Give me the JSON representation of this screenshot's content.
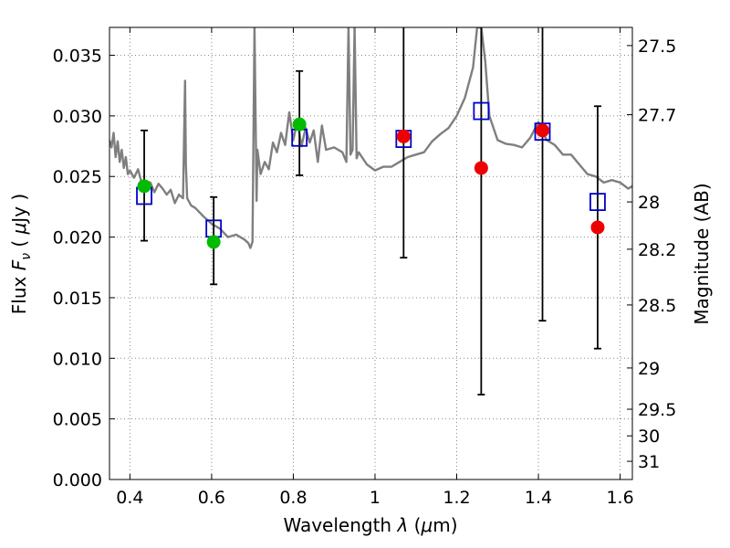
{
  "chart_data": {
    "type": "scatter",
    "title": "",
    "xlabel": {
      "prefix": "Wavelength  ",
      "symbol": "λ",
      "unit_open": " (",
      "unit_mu": "μ",
      "unit_rest": "m)"
    },
    "ylabel": {
      "prefix": "Flux  ",
      "symbol": "F",
      "subscript": "ν",
      "unit_open": "  ( ",
      "unit_mu": "μ",
      "unit_rest": "Jy )"
    },
    "y2label": "Magnitude (AB)",
    "xlim": [
      0.35,
      1.63
    ],
    "ylim": [
      0.0,
      0.0373
    ],
    "grid": true,
    "x_ticks": [
      {
        "value": 0.4,
        "label": "0.4"
      },
      {
        "value": 0.6,
        "label": "0.6"
      },
      {
        "value": 0.8,
        "label": "0.8"
      },
      {
        "value": 1.0,
        "label": "1"
      },
      {
        "value": 1.2,
        "label": "1.2"
      },
      {
        "value": 1.4,
        "label": "1.4"
      },
      {
        "value": 1.6,
        "label": "1.6"
      }
    ],
    "y_ticks": [
      {
        "value": 0.0,
        "label": "0.000"
      },
      {
        "value": 0.005,
        "label": "0.005"
      },
      {
        "value": 0.01,
        "label": "0.010"
      },
      {
        "value": 0.015,
        "label": "0.015"
      },
      {
        "value": 0.02,
        "label": "0.020"
      },
      {
        "value": 0.025,
        "label": "0.025"
      },
      {
        "value": 0.03,
        "label": "0.030"
      },
      {
        "value": 0.035,
        "label": "0.035"
      }
    ],
    "y2_ticks": [
      {
        "flux": 0.0358,
        "label": "27.5"
      },
      {
        "flux": 0.0301,
        "label": "27.7"
      },
      {
        "flux": 0.0229,
        "label": "28"
      },
      {
        "flux": 0.019,
        "label": "28.2"
      },
      {
        "flux": 0.0144,
        "label": "28.5"
      },
      {
        "flux": 0.0092,
        "label": "29"
      },
      {
        "flux": 0.0058,
        "label": "29.5"
      },
      {
        "flux": 0.0036,
        "label": "30"
      },
      {
        "flux": 0.0015,
        "label": "31"
      }
    ],
    "colors": {
      "spectrum": "#7f7f7f",
      "model_box": "#0000cc",
      "green_point": "#00bb00",
      "red_point": "#ee0000",
      "errorbar": "#000000",
      "grid": "#888888"
    },
    "spectrum": {
      "x": [
        0.35,
        0.355,
        0.36,
        0.365,
        0.37,
        0.375,
        0.38,
        0.385,
        0.39,
        0.395,
        0.4,
        0.41,
        0.42,
        0.43,
        0.44,
        0.45,
        0.46,
        0.47,
        0.48,
        0.49,
        0.5,
        0.51,
        0.52,
        0.53,
        0.535,
        0.537,
        0.54,
        0.55,
        0.56,
        0.58,
        0.6,
        0.62,
        0.64,
        0.66,
        0.68,
        0.69,
        0.695,
        0.7,
        0.705,
        0.71,
        0.712,
        0.72,
        0.73,
        0.74,
        0.75,
        0.76,
        0.77,
        0.78,
        0.79,
        0.8,
        0.81,
        0.82,
        0.83,
        0.84,
        0.85,
        0.86,
        0.87,
        0.88,
        0.9,
        0.92,
        0.93,
        0.935,
        0.94,
        0.945,
        0.95,
        0.955,
        0.96,
        0.98,
        1.0,
        1.02,
        1.04,
        1.06,
        1.08,
        1.1,
        1.12,
        1.14,
        1.16,
        1.18,
        1.2,
        1.22,
        1.24,
        1.25,
        1.26,
        1.27,
        1.28,
        1.3,
        1.32,
        1.34,
        1.36,
        1.38,
        1.4,
        1.42,
        1.44,
        1.46,
        1.48,
        1.5,
        1.52,
        1.54,
        1.56,
        1.58,
        1.6,
        1.62,
        1.63
      ],
      "y": [
        0.028,
        0.0274,
        0.0286,
        0.0266,
        0.0279,
        0.0262,
        0.0272,
        0.0257,
        0.0266,
        0.0252,
        0.0255,
        0.0249,
        0.0256,
        0.0243,
        0.0246,
        0.0245,
        0.0237,
        0.0244,
        0.024,
        0.0235,
        0.0239,
        0.0228,
        0.0235,
        0.0232,
        0.0329,
        0.026,
        0.0232,
        0.0226,
        0.0224,
        0.0217,
        0.0211,
        0.0207,
        0.02,
        0.0202,
        0.0198,
        0.0195,
        0.0191,
        0.0196,
        0.0373,
        0.023,
        0.0272,
        0.0252,
        0.0262,
        0.0256,
        0.0278,
        0.027,
        0.0286,
        0.0276,
        0.0303,
        0.028,
        0.0296,
        0.0275,
        0.029,
        0.0278,
        0.0288,
        0.0262,
        0.0292,
        0.0272,
        0.0274,
        0.027,
        0.0262,
        0.0373,
        0.0268,
        0.0272,
        0.0373,
        0.0265,
        0.027,
        0.026,
        0.0255,
        0.0258,
        0.0258,
        0.0262,
        0.0266,
        0.0268,
        0.027,
        0.0279,
        0.0285,
        0.029,
        0.03,
        0.0315,
        0.034,
        0.0373,
        0.0373,
        0.0345,
        0.03,
        0.028,
        0.0277,
        0.0276,
        0.0274,
        0.0282,
        0.0295,
        0.028,
        0.0276,
        0.0268,
        0.0268,
        0.026,
        0.0252,
        0.025,
        0.0245,
        0.0247,
        0.0245,
        0.024,
        0.0242
      ]
    },
    "model_points": {
      "x": [
        0.435,
        0.605,
        0.815,
        1.07,
        1.26,
        1.41,
        1.545
      ],
      "y": [
        0.0234,
        0.0207,
        0.0282,
        0.0281,
        0.0304,
        0.0287,
        0.0229
      ]
    },
    "observed_green": {
      "x": [
        0.435,
        0.605,
        0.815
      ],
      "y": [
        0.0242,
        0.0196,
        0.0293
      ],
      "yerr_low": [
        0.0197,
        0.0161,
        0.0251
      ],
      "yerr_high": [
        0.0288,
        0.0233,
        0.0337
      ]
    },
    "observed_red": {
      "x": [
        1.07,
        1.26,
        1.41,
        1.545
      ],
      "y": [
        0.0283,
        0.0257,
        0.0288,
        0.0208
      ],
      "yerr_low": [
        0.0183,
        0.007,
        0.0131,
        0.0108
      ],
      "yerr_high": [
        0.0373,
        0.0373,
        0.0373,
        0.0308
      ]
    }
  }
}
